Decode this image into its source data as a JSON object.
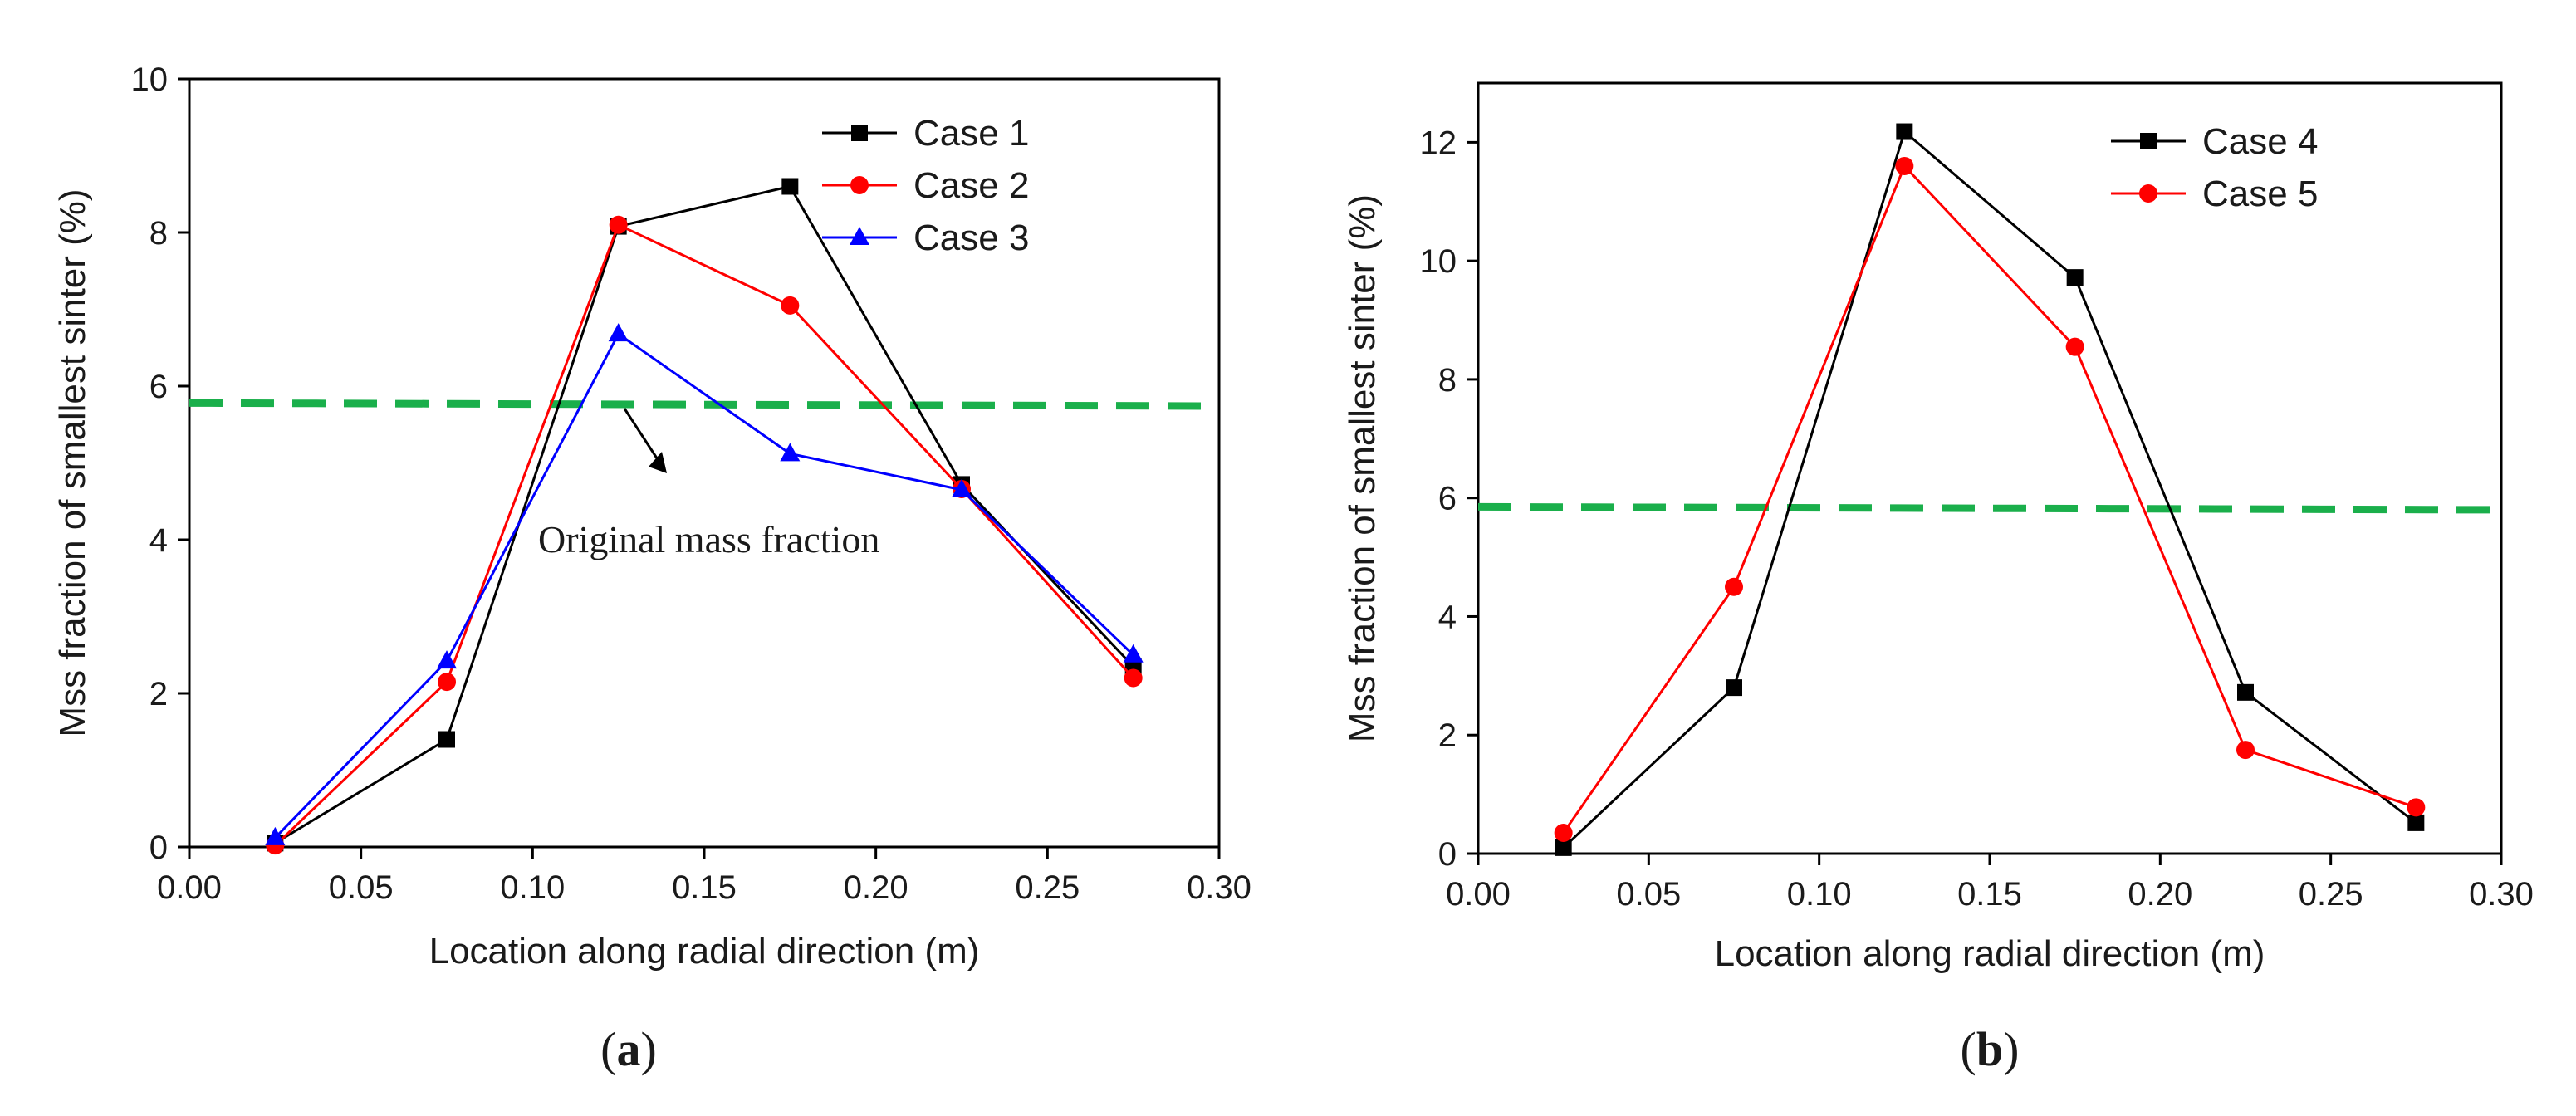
{
  "chart_data": [
    {
      "id": "a",
      "type": "line",
      "caption": "(a)",
      "caption_letter": "a",
      "xlabel": "Location along radial direction (m)",
      "ylabel": "Mss fraction of smallest sinter (%)",
      "xlim": [
        0.0,
        0.3
      ],
      "ylim": [
        0,
        10
      ],
      "xticks": [
        0.0,
        0.05,
        0.1,
        0.15,
        0.2,
        0.25,
        0.3
      ],
      "xtick_labels": [
        "0.00",
        "0.05",
        "0.10",
        "0.15",
        "0.20",
        "0.25",
        "0.30"
      ],
      "yticks": [
        0,
        2,
        4,
        6,
        8,
        10
      ],
      "ytick_labels": [
        "0",
        "2",
        "4",
        "6",
        "8",
        "10"
      ],
      "x": [
        0.025,
        0.075,
        0.125,
        0.175,
        0.225,
        0.275
      ],
      "series": [
        {
          "name": "Case 1",
          "color": "#000000",
          "marker": "square",
          "values": [
            0.05,
            1.4,
            8.08,
            8.6,
            4.72,
            2.35
          ]
        },
        {
          "name": "Case 2",
          "color": "#ff0000",
          "marker": "circle",
          "values": [
            0.02,
            2.15,
            8.1,
            7.05,
            4.66,
            2.2
          ]
        },
        {
          "name": "Case 3",
          "color": "#0000ff",
          "marker": "triangle",
          "values": [
            0.12,
            2.42,
            6.68,
            5.12,
            4.65,
            2.5
          ]
        }
      ],
      "reference_line": {
        "color": "#1aaf4b",
        "start_value": 5.78,
        "end_value": 5.74
      },
      "annotation": "Original mass fraction",
      "legend_position": "top-right"
    },
    {
      "id": "b",
      "type": "line",
      "caption": "(b)",
      "caption_letter": "b",
      "xlabel": "Location along radial direction (m)",
      "ylabel": "Mss fraction of smallest sinter (%)",
      "xlim": [
        0.0,
        0.3
      ],
      "ylim": [
        0,
        13
      ],
      "xticks": [
        0.0,
        0.05,
        0.1,
        0.15,
        0.2,
        0.25,
        0.3
      ],
      "xtick_labels": [
        "0.00",
        "0.05",
        "0.10",
        "0.15",
        "0.20",
        "0.25",
        "0.30"
      ],
      "yticks": [
        0,
        2,
        4,
        6,
        8,
        10,
        12
      ],
      "ytick_labels": [
        "0",
        "2",
        "4",
        "6",
        "8",
        "10",
        "12"
      ],
      "x": [
        0.025,
        0.075,
        0.125,
        0.175,
        0.225,
        0.275
      ],
      "series": [
        {
          "name": "Case 4",
          "color": "#000000",
          "marker": "square",
          "values": [
            0.1,
            2.8,
            12.18,
            9.72,
            2.72,
            0.52
          ]
        },
        {
          "name": "Case 5",
          "color": "#ff0000",
          "marker": "circle",
          "values": [
            0.35,
            4.5,
            11.6,
            8.55,
            1.75,
            0.78
          ]
        }
      ],
      "reference_line": {
        "color": "#1aaf4b",
        "start_value": 5.85,
        "end_value": 5.8
      },
      "legend_position": "top-right"
    }
  ]
}
